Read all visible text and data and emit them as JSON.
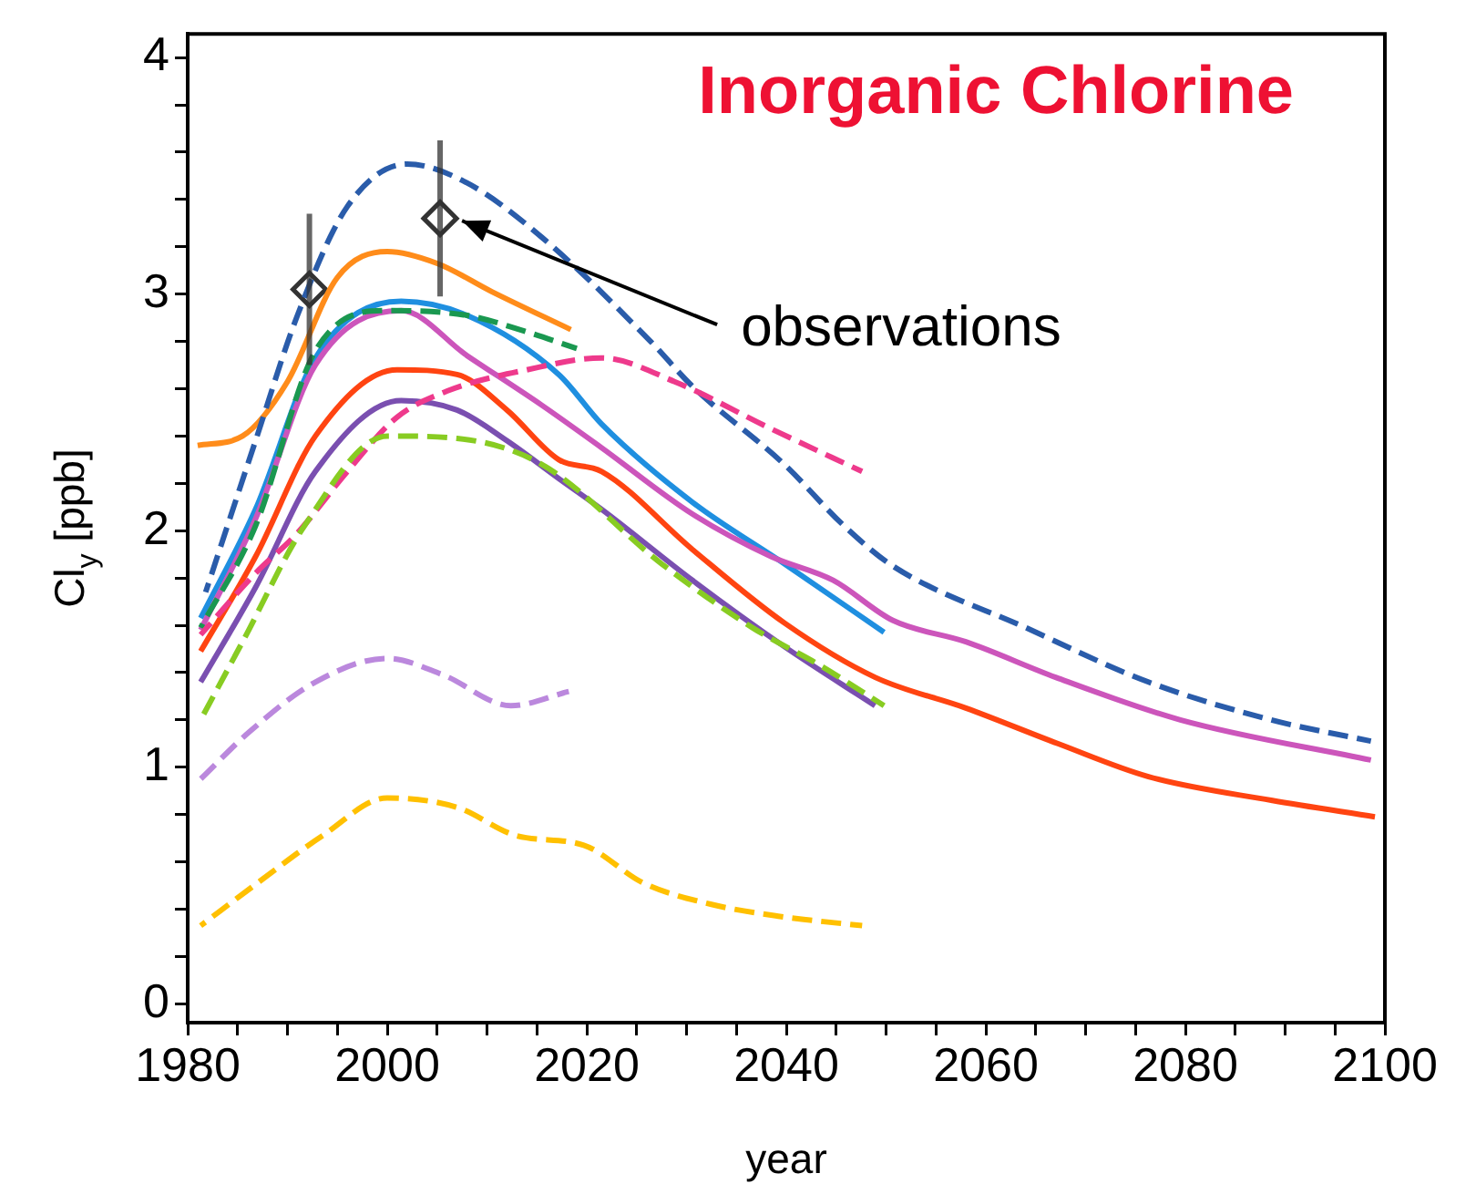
{
  "chart_data": {
    "type": "line",
    "title": "Inorganic Chlorine",
    "xlabel": "year",
    "ylabel": "Cl$_{y}$ [ppb]",
    "xlim": [
      1980,
      2100
    ],
    "xticks": [
      1980,
      {
        "value": 1985,
        "label": null
      },
      {
        "value": 1990,
        "label": null
      },
      {
        "value": 1995,
        "label": null
      },
      2000,
      {
        "value": 2005,
        "label": null
      },
      {
        "value": 2010,
        "label": null
      },
      {
        "value": 2015,
        "label": null
      },
      2020,
      {
        "value": 2025,
        "label": null
      },
      {
        "value": 2030,
        "label": null
      },
      {
        "value": 2035,
        "label": null
      },
      2040,
      {
        "value": 2045,
        "label": null
      },
      {
        "value": 2050,
        "label": null
      },
      {
        "value": 2055,
        "label": null
      },
      2060,
      {
        "value": 2065,
        "label": null
      },
      {
        "value": 2070,
        "label": null
      },
      {
        "value": 2075,
        "label": null
      },
      2080,
      {
        "value": 2085,
        "label": null
      },
      {
        "value": 2090,
        "label": null
      },
      {
        "value": 2095,
        "label": null
      },
      2100
    ],
    "ylim": [
      -0.08,
      4.1
    ],
    "yticks": [
      0,
      {
        "value": 0.2,
        "label": null
      },
      {
        "value": 0.4,
        "label": null
      },
      {
        "value": 0.6,
        "label": null
      },
      {
        "value": 0.8,
        "label": null
      },
      1,
      {
        "value": 1.2,
        "label": null
      },
      {
        "value": 1.4,
        "label": null
      },
      {
        "value": 1.6,
        "label": null
      },
      {
        "value": 1.8,
        "label": null
      },
      2,
      {
        "value": 2.2,
        "label": null
      },
      {
        "value": 2.4,
        "label": null
      },
      {
        "value": 2.6,
        "label": null
      },
      {
        "value": 2.8,
        "label": null
      },
      3,
      {
        "value": 3.2,
        "label": null
      },
      {
        "value": 3.4,
        "label": null
      },
      {
        "value": 3.6,
        "label": null
      },
      {
        "value": 3.8,
        "label": null
      },
      4
    ],
    "grid": false,
    "legend": false,
    "annotations": [
      {
        "text": "observations",
        "x": 2007.5,
        "y": 3.31
      }
    ],
    "series": [
      {
        "color": "#ffc000",
        "line_style": "dashed",
        "marker": "none",
        "x": [
          1981.3,
          1987.3,
          1993.5,
          2000,
          2007,
          2013,
          2019.7,
          2025.7,
          2032.5,
          2039.2,
          2047.6
        ],
        "values": [
          0.33,
          0.52,
          0.71,
          0.87,
          0.83,
          0.71,
          0.67,
          0.51,
          0.42,
          0.37,
          0.33
        ]
      },
      {
        "color": "#bb88dd",
        "line_style": "dashed",
        "marker": "none",
        "x": [
          1981.3,
          1986.2,
          1992.8,
          2000,
          2005.6,
          2012.4,
          2018.2
        ],
        "values": [
          0.95,
          1.15,
          1.36,
          1.46,
          1.39,
          1.26,
          1.32
        ]
      },
      {
        "color": "#88cc22",
        "line_style": "dashed",
        "marker": "none",
        "x": [
          1981.3,
          1985.5,
          1991.7,
          2000,
          2007,
          2015.5,
          2027.5,
          2036.6,
          2043.4,
          2049.8
        ],
        "values": [
          1.2,
          1.53,
          2.02,
          2.4,
          2.39,
          2.28,
          1.86,
          1.59,
          1.43,
          1.26
        ]
      },
      {
        "color": "#ee3a8c",
        "line_style": "dashed",
        "marker": "none",
        "x": [
          1981.3,
          1986.8,
          1991,
          1996,
          2001,
          2006,
          2014,
          2021.5,
          2028.8,
          2038.5,
          2047.6
        ],
        "values": [
          1.56,
          1.82,
          1.99,
          2.25,
          2.48,
          2.59,
          2.68,
          2.73,
          2.63,
          2.43,
          2.25
        ]
      },
      {
        "color": "#1a9850",
        "line_style": "dashed",
        "marker": "none",
        "x": [
          1981.3,
          1986.8,
          1992.8,
          2000,
          2008,
          2014,
          2019
        ],
        "values": [
          1.59,
          2.02,
          2.76,
          2.93,
          2.91,
          2.84,
          2.77
        ]
      },
      {
        "color": "#2a5caa",
        "line_style": "dashed",
        "marker": "none",
        "x": [
          1981.8,
          1986.8,
          1991,
          1996,
          2002,
          2008,
          2015.5,
          2026.4,
          2030.6,
          2039.8,
          2045.8,
          2050.7,
          2064,
          2076.3,
          2088.6,
          2098.6
        ],
        "values": [
          1.74,
          2.38,
          2.91,
          3.37,
          3.55,
          3.47,
          3.24,
          2.8,
          2.61,
          2.28,
          2.02,
          1.85,
          1.59,
          1.36,
          1.2,
          1.11
        ]
      },
      {
        "color": "#7a4fb0",
        "line_style": "solid",
        "marker": "none",
        "x": [
          1981.3,
          1986.8,
          1992.8,
          2001.4,
          2007,
          2012,
          2017.2,
          2021.5,
          2030.6,
          2039.8,
          2048.9
        ],
        "values": [
          1.36,
          1.76,
          2.25,
          2.55,
          2.51,
          2.38,
          2.22,
          2.09,
          1.79,
          1.51,
          1.26
        ]
      },
      {
        "color": "#ff4411",
        "line_style": "solid",
        "marker": "none",
        "x": [
          1981.3,
          1986.8,
          1992.8,
          2001,
          2007,
          2012,
          2017.2,
          2021.5,
          2030.6,
          2039.8,
          2048.9,
          2058,
          2067.2,
          2076.3,
          2088.6,
          2099
        ],
        "values": [
          1.49,
          1.89,
          2.4,
          2.68,
          2.66,
          2.51,
          2.3,
          2.25,
          1.92,
          1.61,
          1.38,
          1.25,
          1.1,
          0.96,
          0.86,
          0.79
        ]
      },
      {
        "color": "#cc55bb",
        "line_style": "solid",
        "marker": "none",
        "x": [
          1981.3,
          1986.8,
          1992.8,
          2001.4,
          2008,
          2015.5,
          2021.5,
          2030.6,
          2038.5,
          2044.7,
          2050.7,
          2058,
          2067,
          2079.5,
          2098.6
        ],
        "values": [
          1.58,
          2.05,
          2.7,
          2.93,
          2.74,
          2.53,
          2.35,
          2.07,
          1.89,
          1.79,
          1.62,
          1.53,
          1.38,
          1.2,
          1.03
        ]
      },
      {
        "color": "#1f8fe0",
        "line_style": "solid",
        "marker": "none",
        "x": [
          1981.3,
          1986.8,
          1992.8,
          2001.4,
          2008,
          2017.2,
          2021.5,
          2030.6,
          2039.8,
          2049.8
        ],
        "values": [
          1.63,
          2.09,
          2.73,
          2.97,
          2.91,
          2.66,
          2.45,
          2.12,
          1.86,
          1.57
        ]
      },
      {
        "color": "#ff8c1a",
        "line_style": "solid",
        "marker": "none",
        "x": [
          1981,
          1985.5,
          1990,
          1995,
          2000,
          2005,
          2010.5,
          2018.4
        ],
        "values": [
          2.36,
          2.4,
          2.63,
          3.07,
          3.18,
          3.13,
          3.01,
          2.85
        ]
      },
      {
        "type": "scatter",
        "color": "#333333",
        "marker": "diamond",
        "x": [
          1992.2,
          2005.3
        ],
        "values": [
          3.02,
          3.32
        ],
        "errors": [
          0.32,
          0.33
        ]
      }
    ]
  }
}
